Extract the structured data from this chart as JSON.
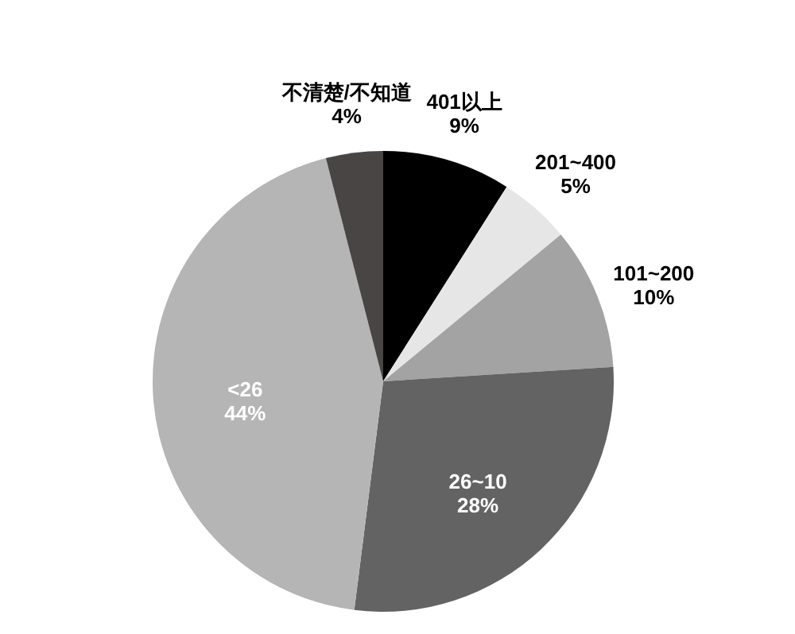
{
  "chart_data": {
    "type": "pie",
    "categories": [
      "401以上",
      "201~400",
      "101~200",
      "26~10",
      "<26",
      "不清楚/不知道"
    ],
    "values": [
      9,
      5,
      10,
      28,
      44,
      4
    ],
    "value_labels": [
      "9%",
      "5%",
      "10%",
      "28%",
      "44%",
      "4%"
    ],
    "colors": [
      "#000000",
      "#e6e6e6",
      "#a3a3a3",
      "#636363",
      "#b5b5b5",
      "#4a4545"
    ]
  }
}
